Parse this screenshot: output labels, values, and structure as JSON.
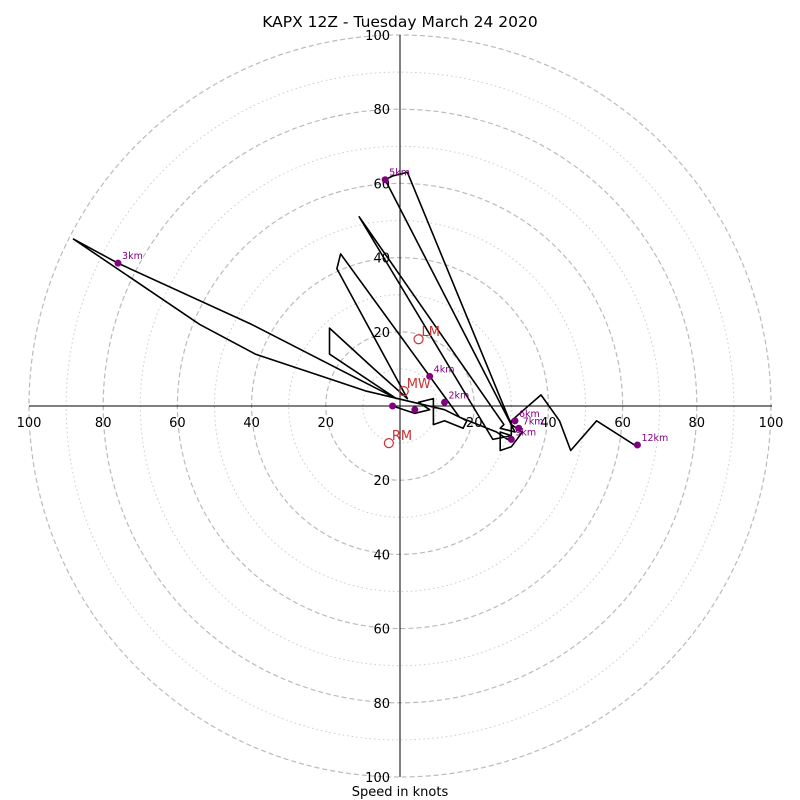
{
  "chart_data": {
    "type": "line",
    "title": "KAPX 12Z - Tuesday March 24 2020",
    "xlabel": "Speed in knots",
    "ylabel": "",
    "xlim": [
      -100,
      100
    ],
    "ylim": [
      -100,
      100
    ],
    "ticks": {
      "x": [
        {
          "value": -100,
          "label": "100"
        },
        {
          "value": -80,
          "label": "80"
        },
        {
          "value": -60,
          "label": "60"
        },
        {
          "value": -40,
          "label": "40"
        },
        {
          "value": -20,
          "label": "20"
        },
        {
          "value": 20,
          "label": "20"
        },
        {
          "value": 40,
          "label": "40"
        },
        {
          "value": 60,
          "label": "60"
        },
        {
          "value": 80,
          "label": "80"
        },
        {
          "value": 100,
          "label": "100"
        }
      ],
      "y": [
        {
          "value": 100,
          "label": "100"
        },
        {
          "value": 80,
          "label": "80"
        },
        {
          "value": 60,
          "label": "60"
        },
        {
          "value": 40,
          "label": "40"
        },
        {
          "value": 20,
          "label": "20"
        },
        {
          "value": -20,
          "label": "20"
        },
        {
          "value": -40,
          "label": "40"
        },
        {
          "value": -60,
          "label": "60"
        },
        {
          "value": -80,
          "label": "80"
        },
        {
          "value": -100,
          "label": "100"
        }
      ]
    },
    "rings": {
      "dashed": [
        20,
        40,
        60,
        80,
        100
      ],
      "dotted": [
        10,
        30,
        50,
        70,
        90
      ]
    },
    "hodograph": {
      "color": "#000000",
      "points": [
        [
          -2,
          0
        ],
        [
          4,
          -2
        ],
        [
          8,
          -1
        ],
        [
          5,
          1
        ],
        [
          9,
          2
        ],
        [
          9,
          -5
        ],
        [
          12,
          -4
        ],
        [
          17,
          -6
        ],
        [
          18,
          -4
        ],
        [
          12,
          -1
        ],
        [
          -9,
          4
        ],
        [
          -39,
          14
        ],
        [
          -54,
          22
        ],
        [
          -88,
          45
        ],
        [
          -76,
          38.5
        ],
        [
          -40,
          22
        ],
        [
          -1,
          2
        ],
        [
          -19,
          14
        ],
        [
          -19,
          21
        ],
        [
          -7,
          10
        ],
        [
          2,
          2
        ],
        [
          -17,
          37
        ],
        [
          -16,
          41
        ],
        [
          16,
          -3
        ],
        [
          26,
          -7
        ],
        [
          29,
          -9
        ],
        [
          30,
          -8
        ],
        [
          25,
          -9
        ],
        [
          -11,
          51
        ],
        [
          28,
          -5
        ],
        [
          27,
          -6
        ],
        [
          31,
          -7
        ],
        [
          -4,
          61
        ],
        [
          -2,
          62
        ],
        [
          2,
          63
        ],
        [
          30,
          -5
        ],
        [
          33,
          -7
        ],
        [
          30,
          -11
        ],
        [
          27,
          -12
        ],
        [
          27,
          -7
        ],
        [
          30,
          -8
        ],
        [
          30,
          -4
        ],
        [
          38,
          3
        ],
        [
          43,
          -4
        ],
        [
          46,
          -12
        ],
        [
          53,
          -4
        ],
        [
          64,
          -11
        ],
        [
          64,
          -10.5
        ]
      ]
    },
    "height_markers": {
      "color": "#800080",
      "points": [
        {
          "label": "",
          "u": -2,
          "v": 0
        },
        {
          "label": "",
          "u": 4,
          "v": -1
        },
        {
          "label": "2km",
          "u": 12,
          "v": 1
        },
        {
          "label": "3km",
          "u": -76,
          "v": 38.5
        },
        {
          "label": "4km",
          "u": 8,
          "v": 8
        },
        {
          "label": "5km",
          "u": -4,
          "v": 61
        },
        {
          "label": "6km",
          "u": 31,
          "v": -4
        },
        {
          "label": "7km",
          "u": 32,
          "v": -6
        },
        {
          "label": "9km",
          "u": 30,
          "v": -9
        },
        {
          "label": "12km",
          "u": 64,
          "v": -10.5
        }
      ]
    },
    "motion_markers": {
      "color": "#cc3333",
      "points": [
        {
          "label": "LM",
          "u": 5,
          "v": 18
        },
        {
          "label": "MW",
          "u": 1,
          "v": 4
        },
        {
          "label": "RM",
          "u": -3,
          "v": -10
        }
      ]
    }
  }
}
